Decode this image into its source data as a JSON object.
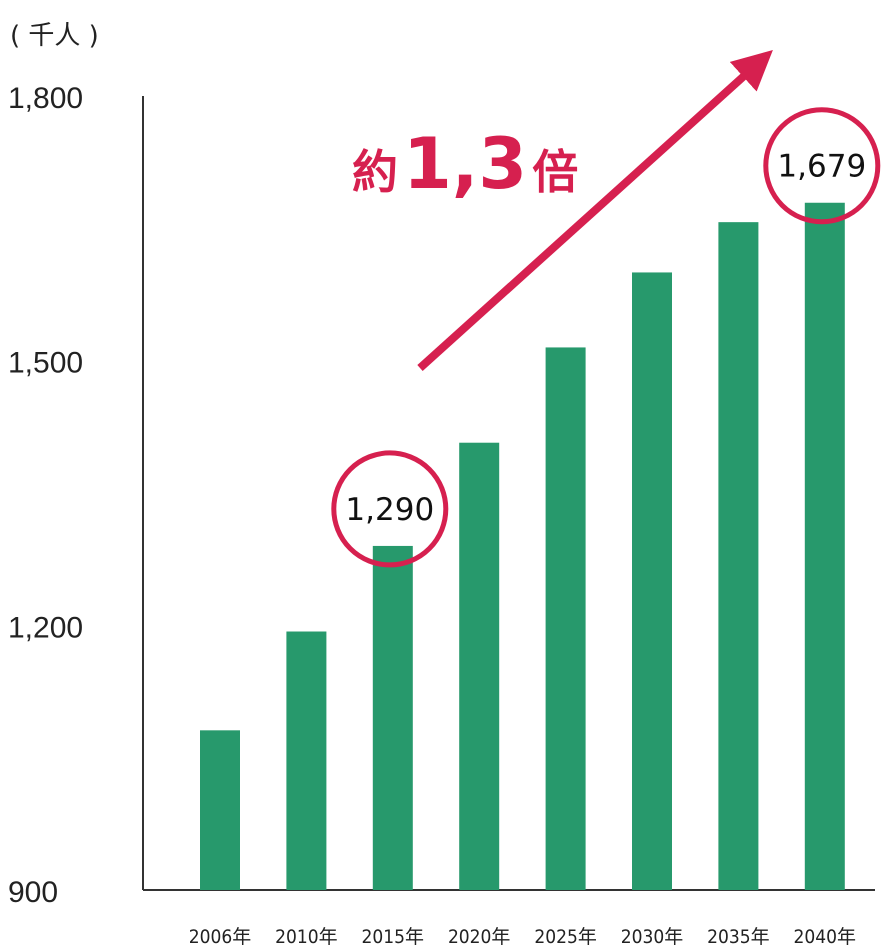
{
  "chart_data": {
    "type": "bar",
    "unit_label": "( 千人 )",
    "categories": [
      "2006年",
      "2010年",
      "2015年",
      "2020年",
      "2025年",
      "2030年",
      "2035年",
      "2040年"
    ],
    "values": [
      1081,
      1193,
      1290,
      1407,
      1515,
      1600,
      1657,
      1679
    ],
    "ylim": [
      900,
      1800
    ],
    "yticks": [
      "900",
      "1,200",
      "1,500",
      "1,800"
    ],
    "ytick_values": [
      900,
      1200,
      1500,
      1800
    ],
    "grid": false,
    "highlighted": [
      {
        "category": "2015年",
        "label": "1,290"
      },
      {
        "category": "2040年",
        "label": "1,679"
      }
    ],
    "annotation": {
      "prefix": "約",
      "value": "1,3",
      "suffix": "倍"
    }
  },
  "colors": {
    "bar": "#27996c",
    "accent": "#d6204f",
    "axis": "#333333"
  }
}
